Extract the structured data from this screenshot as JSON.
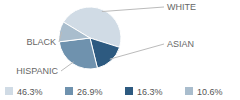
{
  "chart_data": {
    "type": "pie",
    "categories": [
      "WHITE",
      "ASIAN",
      "HISPANIC",
      "BLACK"
    ],
    "values": [
      46.3,
      16.3,
      26.9,
      10.6
    ],
    "value_labels": [
      "46.3%",
      "16.3%",
      "26.9%",
      "10.6%"
    ],
    "colors": [
      "#d0dbe5",
      "#2d5a80",
      "#6f92ae",
      "#a9bdcd"
    ]
  }
}
